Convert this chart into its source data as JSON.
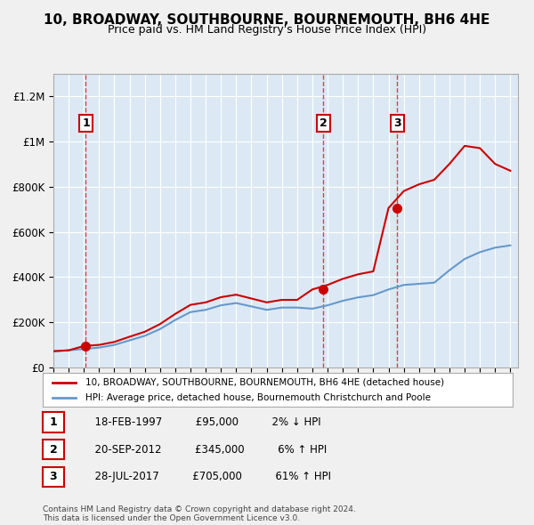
{
  "title": "10, BROADWAY, SOUTHBOURNE, BOURNEMOUTH, BH6 4HE",
  "subtitle": "Price paid vs. HM Land Registry's House Price Index (HPI)",
  "background_color": "#dce9f5",
  "plot_bg_color": "#dce9f5",
  "ylim": [
    0,
    1300000
  ],
  "yticks": [
    0,
    200000,
    400000,
    600000,
    800000,
    1000000,
    1200000
  ],
  "ytick_labels": [
    "£0",
    "£200K",
    "£400K",
    "£600K",
    "£800K",
    "£1M",
    "£1.2M"
  ],
  "xlim_start": 1995,
  "xlim_end": 2025.5,
  "transactions": [
    {
      "date_num": 1997.13,
      "price": 95000,
      "label": "1"
    },
    {
      "date_num": 2012.72,
      "price": 345000,
      "label": "2"
    },
    {
      "date_num": 2017.57,
      "price": 705000,
      "label": "3"
    }
  ],
  "transaction_color": "#cc0000",
  "hpi_color": "#6699cc",
  "legend_entries": [
    "10, BROADWAY, SOUTHBOURNE, BOURNEMOUTH, BH6 4HE (detached house)",
    "HPI: Average price, detached house, Bournemouth Christchurch and Poole"
  ],
  "table_data": [
    {
      "num": "1",
      "date": "18-FEB-1997",
      "price": "£95,000",
      "change": "2% ↓ HPI"
    },
    {
      "num": "2",
      "date": "20-SEP-2012",
      "price": "£345,000",
      "change": "6% ↑ HPI"
    },
    {
      "num": "3",
      "date": "28-JUL-2017",
      "price": "£705,000",
      "change": "61% ↑ HPI"
    }
  ],
  "footer": "Contains HM Land Registry data © Crown copyright and database right 2024.\nThis data is licensed under the Open Government Licence v3.0.",
  "hpi_line": {
    "years": [
      1995,
      1996,
      1997,
      1998,
      1999,
      2000,
      2001,
      2002,
      2003,
      2004,
      2005,
      2006,
      2007,
      2008,
      2009,
      2010,
      2011,
      2012,
      2013,
      2014,
      2015,
      2016,
      2017,
      2018,
      2019,
      2020,
      2021,
      2022,
      2023,
      2024,
      2025
    ],
    "values": [
      72000,
      76000,
      82000,
      88000,
      100000,
      120000,
      140000,
      170000,
      210000,
      245000,
      255000,
      275000,
      285000,
      270000,
      255000,
      265000,
      265000,
      260000,
      275000,
      295000,
      310000,
      320000,
      345000,
      365000,
      370000,
      375000,
      430000,
      480000,
      510000,
      530000,
      540000
    ]
  },
  "price_line": {
    "years": [
      1995,
      1996,
      1997,
      1998,
      1999,
      2000,
      2001,
      2002,
      2003,
      2004,
      2005,
      2006,
      2007,
      2008,
      2009,
      2010,
      2011,
      2012,
      2013,
      2014,
      2015,
      2016,
      2017,
      2018,
      2019,
      2020,
      2021,
      2022,
      2023,
      2024,
      2025
    ],
    "values": [
      72000,
      76000,
      95000,
      100000,
      113000,
      136000,
      158000,
      192000,
      237000,
      277000,
      288000,
      311000,
      322000,
      305000,
      288000,
      299000,
      299000,
      345000,
      365000,
      392000,
      412000,
      425000,
      705000,
      780000,
      810000,
      830000,
      900000,
      980000,
      970000,
      900000,
      870000
    ]
  }
}
